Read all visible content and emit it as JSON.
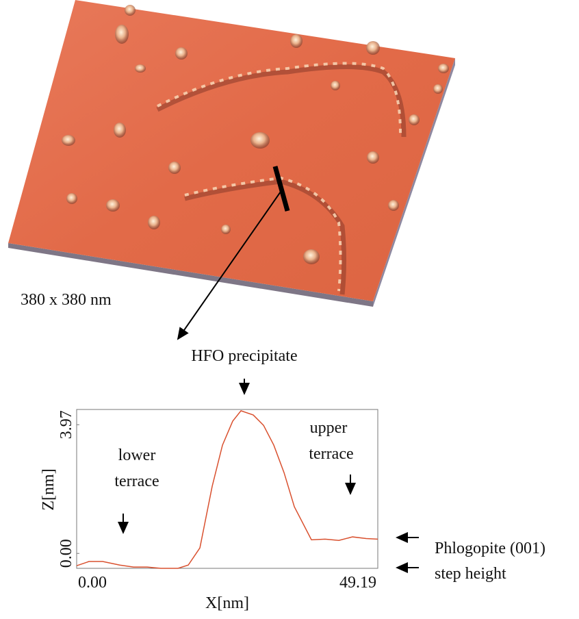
{
  "chart_data": {
    "type": "line",
    "xlabel": "X[nm]",
    "ylabel": "Z[nm]",
    "x": [
      0,
      2.01,
      4.25,
      7.04,
      9.28,
      11.52,
      13.75,
      16.55,
      18.23,
      20.13,
      22.14,
      23.82,
      25.49,
      26.84,
      28.85,
      30.53,
      32.2,
      33.88,
      35.56,
      38.35,
      40.59,
      42.83,
      45.06,
      47.3,
      49.19
    ],
    "values": [
      -0.38,
      -0.25,
      -0.25,
      -0.36,
      -0.42,
      -0.42,
      -0.46,
      -0.46,
      -0.36,
      0.17,
      2.07,
      3.34,
      4.08,
      4.4,
      4.27,
      3.95,
      3.34,
      2.49,
      1.44,
      0.42,
      0.44,
      0.4,
      0.51,
      0.46,
      0.44
    ],
    "color": "#d9502e",
    "xlim": [
      0,
      49.19
    ],
    "xticks": [
      {
        "value": 0,
        "label": "0.00"
      },
      49.19
    ],
    "ylim": [
      -0.46,
      4.44
    ],
    "yticks": [
      {
        "value": 0,
        "label": "0.00"
      },
      3.97
    ],
    "image_label": "380 x 380 nm",
    "annotations": {
      "peak": "HFO precipitate",
      "lower": [
        "lower",
        "terrace"
      ],
      "upper": [
        "upper",
        "terrace"
      ],
      "surface": "Phlogopite (001)",
      "step": "step height"
    }
  }
}
